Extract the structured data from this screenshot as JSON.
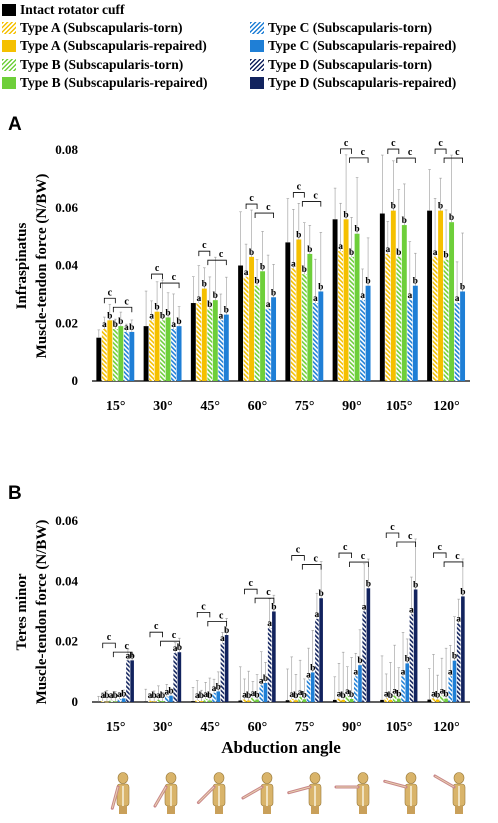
{
  "legend": [
    {
      "label": "Intact rotator cuff",
      "color": "#000000",
      "pattern": "solid"
    },
    {
      "label": "Type A (Subscapularis-torn)",
      "color": "#f5c000",
      "pattern": "hatch"
    },
    {
      "label": "Type C (Subscapularis-torn)",
      "color": "#1f7fd6",
      "pattern": "hatch"
    },
    {
      "label": "Type A (Subscapularis-repaired)",
      "color": "#f5c000",
      "pattern": "solid"
    },
    {
      "label": "Type C (Subscapularis-repaired)",
      "color": "#1f7fd6",
      "pattern": "solid"
    },
    {
      "label": "Type B (Subscapularis-torn)",
      "color": "#6ecf3a",
      "pattern": "hatch"
    },
    {
      "label": "Type D (Subscapularis-torn)",
      "color": "#12235e",
      "pattern": "hatch"
    },
    {
      "label": "Type B (Subscapularis-repaired)",
      "color": "#6ecf3a",
      "pattern": "solid"
    },
    {
      "label": "Type D (Subscapularis-repaired)",
      "color": "#12235e",
      "pattern": "solid"
    }
  ],
  "panels": [
    {
      "letter": "A",
      "ylabel1": "Infraspinatus",
      "ylabel2": "Muscle-tendon force (N/BW)"
    },
    {
      "letter": "B",
      "ylabel1": "Teres minor",
      "ylabel2": "Muscle-tendon force (N/BW)"
    }
  ],
  "xlabel": "Abduction angle",
  "figure_icon": "shoulder-abduction-figure",
  "chart_data": [
    {
      "type": "bar",
      "title": "",
      "xlabel": "",
      "ylabel": "Infraspinatus Muscle-tendon force (N/BW)",
      "ylim": [
        0,
        0.08
      ],
      "yticks": [
        0,
        0.02,
        0.04,
        0.06,
        0.08
      ],
      "categories": [
        "15°",
        "30°",
        "45°",
        "60°",
        "75°",
        "90°",
        "105°",
        "120°"
      ],
      "series": [
        {
          "name": "Intact rotator cuff",
          "values": [
            0.015,
            0.019,
            0.027,
            0.04,
            0.048,
            0.056,
            0.058,
            0.059
          ]
        },
        {
          "name": "Type A (Subscapularis-torn)",
          "values": [
            0.018,
            0.021,
            0.027,
            0.036,
            0.039,
            0.045,
            0.044,
            0.043
          ]
        },
        {
          "name": "Type A (Subscapularis-repaired)",
          "values": [
            0.021,
            0.024,
            0.032,
            0.043,
            0.049,
            0.056,
            0.059,
            0.059
          ]
        },
        {
          "name": "Type B (Subscapularis-torn)",
          "values": [
            0.018,
            0.021,
            0.025,
            0.033,
            0.037,
            0.043,
            0.043,
            0.042
          ]
        },
        {
          "name": "Type B (Subscapularis-repaired)",
          "values": [
            0.019,
            0.022,
            0.028,
            0.038,
            0.044,
            0.051,
            0.054,
            0.055
          ]
        },
        {
          "name": "Type C (Subscapularis-torn)",
          "values": [
            0.017,
            0.018,
            0.021,
            0.025,
            0.027,
            0.028,
            0.028,
            0.027
          ]
        },
        {
          "name": "Type C (Subscapularis-repaired)",
          "values": [
            0.017,
            0.019,
            0.023,
            0.029,
            0.031,
            0.033,
            0.033,
            0.031
          ]
        }
      ],
      "errors": [
        0.006,
        0.015,
        0.016,
        0.02,
        0.022,
        0.024,
        0.025,
        0.025
      ],
      "letters": [
        "a",
        "b",
        "b",
        "b",
        "a",
        "b",
        "c"
      ],
      "bracket_letter": "c"
    },
    {
      "type": "bar",
      "title": "",
      "xlabel": "Abduction angle",
      "ylabel": "Teres minor Muscle-tendon force (N/BW)",
      "ylim": [
        0,
        0.06
      ],
      "yticks": [
        0,
        0.02,
        0.04,
        0.06
      ],
      "categories": [
        "15°",
        "30°",
        "45°",
        "60°",
        "75°",
        "90°",
        "105°",
        "120°"
      ],
      "series": [
        {
          "name": "Intact rotator cuff",
          "values": [
            0.0001,
            0.0002,
            0.0003,
            0.0005,
            0.0006,
            0.0007,
            0.0007,
            0.0008
          ]
        },
        {
          "name": "Type A (Subscapularis-torn)",
          "values": [
            0.0003,
            0.0004,
            0.0006,
            0.0008,
            0.001,
            0.0011,
            0.0012,
            0.0012
          ]
        },
        {
          "name": "Type A (Subscapularis-repaired)",
          "values": [
            0.0001,
            0.0002,
            0.0003,
            0.0005,
            0.0006,
            0.0007,
            0.0007,
            0.0008
          ]
        },
        {
          "name": "Type B (Subscapularis-torn)",
          "values": [
            0.0005,
            0.0007,
            0.001,
            0.0014,
            0.0017,
            0.002,
            0.0021,
            0.0021
          ]
        },
        {
          "name": "Type B (Subscapularis-repaired)",
          "values": [
            0.0002,
            0.0003,
            0.0005,
            0.0008,
            0.0009,
            0.001,
            0.0011,
            0.0011
          ]
        },
        {
          "name": "Type C (Subscapularis-torn)",
          "values": [
            0.001,
            0.0018,
            0.003,
            0.0055,
            0.0075,
            0.0085,
            0.0085,
            0.0085
          ]
        },
        {
          "name": "Type C (Subscapularis-repaired)",
          "values": [
            0.0012,
            0.0021,
            0.0035,
            0.0063,
            0.0098,
            0.0122,
            0.0128,
            0.0137
          ]
        },
        {
          "name": "Type D (Subscapularis-torn)",
          "values": [
            0.0138,
            0.0162,
            0.0195,
            0.0245,
            0.0275,
            0.03,
            0.029,
            0.026
          ]
        },
        {
          "name": "Type D (Subscapularis-repaired)",
          "values": [
            0.0138,
            0.0165,
            0.0222,
            0.03,
            0.0344,
            0.0377,
            0.0373,
            0.035
          ]
        }
      ],
      "errors": [
        0.004,
        0.005,
        0.008,
        0.012,
        0.015,
        0.017,
        0.018,
        0.018
      ],
      "letters": [
        "a",
        "b",
        "a",
        "b",
        "a",
        "b",
        "a",
        "b"
      ],
      "bracket_letter": "c"
    }
  ]
}
